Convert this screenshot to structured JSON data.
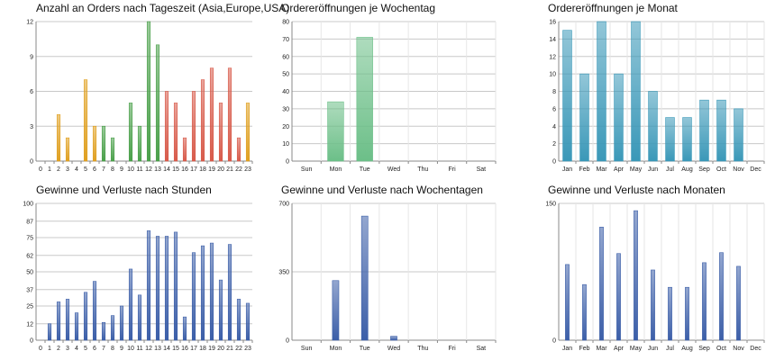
{
  "colors": {
    "grid": "#c8c8c8",
    "axis": "#888888",
    "orange": "#e0a020",
    "green": "#4aa04a",
    "red": "#d85a4a",
    "weekday_green": "#6cbf88",
    "teal": "#3a98b8",
    "blue": "#3b5ea8"
  },
  "chart_data": [
    {
      "id": "orders_hour",
      "type": "bar",
      "title": "Anzahl an Orders nach Tageszeit (Asia,Europe,USA)",
      "xlabel": "",
      "ylabel": "",
      "categories": [
        "0",
        "1",
        "2",
        "3",
        "4",
        "5",
        "6",
        "7",
        "8",
        "9",
        "10",
        "11",
        "12",
        "13",
        "14",
        "15",
        "16",
        "17",
        "18",
        "19",
        "20",
        "21",
        "22",
        "23"
      ],
      "values": [
        0,
        0,
        4,
        2,
        0,
        7,
        3,
        3,
        2,
        0,
        5,
        3,
        12,
        10,
        6,
        5,
        2,
        6,
        7,
        8,
        5,
        8,
        2,
        5
      ],
      "ylim": [
        0,
        12
      ],
      "yticks": [
        "0",
        "3",
        "6",
        "9",
        "12"
      ],
      "color_groups": [
        "orange",
        "orange",
        "orange",
        "orange",
        "orange",
        "orange",
        "orange",
        "green",
        "green",
        "green",
        "green",
        "green",
        "green",
        "green",
        "red",
        "red",
        "red",
        "red",
        "red",
        "red",
        "red",
        "red",
        "red",
        "orange"
      ]
    },
    {
      "id": "orders_weekday",
      "type": "bar",
      "title": "Ordereröffnungen je Wochentag",
      "xlabel": "",
      "ylabel": "",
      "categories": [
        "Sun",
        "Mon",
        "Tue",
        "Wed",
        "Thu",
        "Fri",
        "Sat"
      ],
      "values": [
        0,
        34,
        71,
        0,
        0,
        0,
        0
      ],
      "ylim": [
        0,
        80
      ],
      "yticks": [
        "0",
        "10",
        "20",
        "30",
        "40",
        "50",
        "60",
        "70",
        "80"
      ],
      "color": "weekday_green"
    },
    {
      "id": "orders_month",
      "type": "bar",
      "title": "Ordereröffnungen je Monat",
      "xlabel": "",
      "ylabel": "",
      "categories": [
        "Jan",
        "Feb",
        "Mar",
        "Apr",
        "May",
        "Jun",
        "Jul",
        "Aug",
        "Sep",
        "Oct",
        "Nov",
        "Dec"
      ],
      "values": [
        15,
        10,
        16,
        10,
        16,
        8,
        5,
        5,
        7,
        7,
        6,
        0
      ],
      "ylim": [
        0,
        16
      ],
      "yticks": [
        "0",
        "2",
        "4",
        "6",
        "8",
        "10",
        "12",
        "14",
        "16"
      ],
      "color": "teal"
    },
    {
      "id": "pnl_hour",
      "type": "bar",
      "title": "Gewinne und Verluste nach Stunden",
      "xlabel": "",
      "ylabel": "",
      "categories": [
        "0",
        "1",
        "2",
        "3",
        "4",
        "5",
        "6",
        "7",
        "8",
        "9",
        "10",
        "11",
        "12",
        "13",
        "14",
        "15",
        "16",
        "17",
        "18",
        "19",
        "20",
        "21",
        "22",
        "23"
      ],
      "values": [
        0,
        12,
        28,
        30,
        20,
        35,
        43,
        13,
        18,
        25,
        52,
        33,
        80,
        76,
        76,
        79,
        17,
        64,
        69,
        71,
        44,
        70,
        30,
        27
      ],
      "ylim": [
        0,
        100
      ],
      "yticks": [
        "0",
        "12",
        "25",
        "37",
        "50",
        "62",
        "75",
        "87",
        "100"
      ],
      "color": "blue"
    },
    {
      "id": "pnl_weekday",
      "type": "bar",
      "title": "Gewinne und Verluste nach Wochentagen",
      "xlabel": "",
      "ylabel": "",
      "categories": [
        "Sun",
        "Mon",
        "Tue",
        "Wed",
        "Thu",
        "Fri",
        "Sat"
      ],
      "values": [
        0,
        305,
        635,
        20,
        0,
        0,
        0
      ],
      "ylim": [
        0,
        700
      ],
      "yticks": [
        "0",
        "350",
        "700"
      ],
      "color": "blue"
    },
    {
      "id": "pnl_month",
      "type": "bar",
      "title": "Gewinne und Verluste nach Monaten",
      "xlabel": "",
      "ylabel": "",
      "categories": [
        "Jan",
        "Feb",
        "Mar",
        "Apr",
        "May",
        "Jun",
        "Jul",
        "Aug",
        "Sep",
        "Oct",
        "Nov",
        "Dec"
      ],
      "values": [
        83,
        61,
        124,
        95,
        142,
        77,
        58,
        58,
        85,
        96,
        81,
        0
      ],
      "ylim": [
        0,
        150
      ],
      "yticks": [
        "0",
        "150"
      ],
      "color": "blue"
    }
  ]
}
